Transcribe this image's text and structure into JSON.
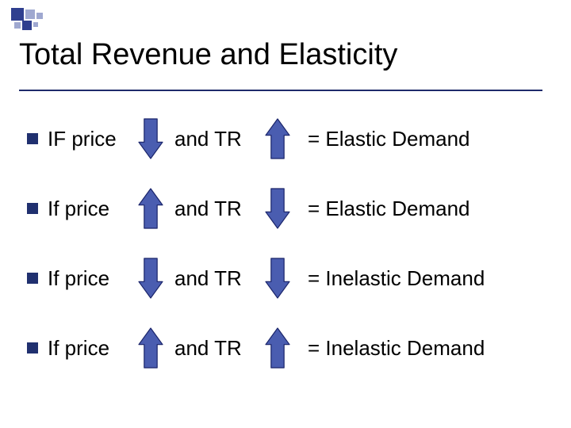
{
  "title": "Total Revenue and Elasticity",
  "colors": {
    "bullet": "#20306f",
    "title_rule": "#1f2b6b",
    "arrow_fill": "#4a5db0",
    "arrow_stroke": "#1a246a",
    "decor_light": "#9fa8d0",
    "decor_dark": "#2f3f8f",
    "text": "#000000",
    "background": "#ffffff"
  },
  "typography": {
    "title_fontsize": 38,
    "row_fontsize": 26,
    "font_family": "Arial"
  },
  "arrow": {
    "width": 34,
    "height": 54,
    "stroke_width": 1.2
  },
  "rows": [
    {
      "price_label": "IF price",
      "price_dir": "down",
      "tr_label": "and TR",
      "tr_dir": "up",
      "result": "= Elastic Demand"
    },
    {
      "price_label": "If price",
      "price_dir": "up",
      "tr_label": "and TR",
      "tr_dir": "down",
      "result": "= Elastic Demand"
    },
    {
      "price_label": "If price",
      "price_dir": "down",
      "tr_label": "and TR",
      "tr_dir": "down",
      "result": "= Inelastic Demand"
    },
    {
      "price_label": "If price",
      "price_dir": "up",
      "tr_label": "and TR",
      "tr_dir": "up",
      "result": "= Inelastic Demand"
    }
  ]
}
